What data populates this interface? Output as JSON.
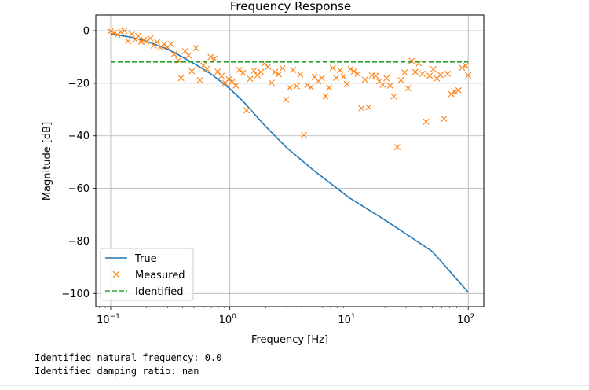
{
  "chart_data": {
    "type": "line",
    "title": "Frequency Response",
    "xlabel": "Frequency [Hz]",
    "ylabel": "Magnitude [dB]",
    "xscale": "log",
    "xlim": [
      0.075,
      135
    ],
    "ylim": [
      -105,
      6
    ],
    "grid": true,
    "legend_position": "lower-left",
    "x_ticks": [
      {
        "value": 0.1,
        "base": "10",
        "exp": "−1"
      },
      {
        "value": 1,
        "base": "10",
        "exp": "0"
      },
      {
        "value": 10,
        "base": "10",
        "exp": "1"
      },
      {
        "value": 100,
        "base": "10",
        "exp": "2"
      }
    ],
    "y_ticks": [
      {
        "value": 0,
        "label": "0"
      },
      {
        "value": -20,
        "label": "−20"
      },
      {
        "value": -40,
        "label": "−40"
      },
      {
        "value": -60,
        "label": "−60"
      },
      {
        "value": -80,
        "label": "−80"
      },
      {
        "value": -100,
        "label": "−100"
      }
    ],
    "series": [
      {
        "name": "True",
        "style": "line",
        "color": "#1f77b4",
        "x": [
          0.1,
          0.15,
          0.2,
          0.3,
          0.4,
          0.5,
          0.6,
          0.7,
          0.8,
          1.0,
          1.3,
          1.6,
          2.0,
          3.0,
          5.0,
          10,
          20,
          50,
          100
        ],
        "y": [
          -1.2,
          -2.5,
          -4.0,
          -7.0,
          -10.0,
          -12.5,
          -14.7,
          -16.6,
          -18.6,
          -22.1,
          -27.0,
          -31.6,
          -36.5,
          -44.5,
          -53.0,
          -63.5,
          -72.0,
          -84.0,
          -99.5
        ]
      },
      {
        "name": "Measured",
        "style": "marker-x",
        "color": "#ff7f0e",
        "x": [
          0.1,
          0.107,
          0.114,
          0.122,
          0.13,
          0.14,
          0.15,
          0.16,
          0.17,
          0.18,
          0.19,
          0.2,
          0.215,
          0.23,
          0.245,
          0.26,
          0.28,
          0.3,
          0.32,
          0.34,
          0.37,
          0.39,
          0.42,
          0.45,
          0.48,
          0.52,
          0.56,
          0.6,
          0.64,
          0.69,
          0.74,
          0.79,
          0.85,
          0.91,
          0.98,
          1.05,
          1.12,
          1.2,
          1.29,
          1.38,
          1.48,
          1.59,
          1.7,
          1.82,
          1.95,
          2.09,
          2.24,
          2.4,
          2.57,
          2.76,
          2.96,
          3.17,
          3.4,
          3.64,
          3.9,
          4.18,
          4.48,
          4.8,
          5.15,
          5.52,
          5.92,
          6.35,
          6.8,
          7.3,
          7.8,
          8.4,
          9.0,
          9.6,
          10.3,
          11.0,
          11.8,
          12.7,
          13.6,
          14.6,
          15.6,
          16.7,
          17.9,
          19.2,
          20.6,
          22.1,
          23.7,
          25.4,
          27.2,
          29.2,
          31.3,
          33.5,
          35.9,
          38.5,
          41.3,
          44.3,
          47.5,
          50.9,
          54.6,
          58.5,
          62.7,
          67.2,
          72.1,
          77.3,
          82.9,
          88.9,
          95.3,
          100
        ],
        "y": [
          -0.2,
          -0.8,
          -1.5,
          -0.4,
          -0.1,
          -4.0,
          -1.3,
          -3.3,
          -2.0,
          -4.2,
          -3.5,
          -4.1,
          -2.9,
          -5.6,
          -4.3,
          -6.4,
          -5.2,
          -6.3,
          -5.1,
          -8.9,
          -11.3,
          -18.0,
          -7.8,
          -9.4,
          -15.4,
          -6.6,
          -18.8,
          -13.2,
          -14.5,
          -10.0,
          -10.7,
          -15.6,
          -17.2,
          -19.9,
          -18.5,
          -19.4,
          -20.9,
          -14.9,
          -16.0,
          -30.3,
          -18.3,
          -15.2,
          -17.0,
          -15.7,
          -12.5,
          -13.7,
          -19.8,
          -15.7,
          -16.6,
          -14.3,
          -26.2,
          -21.7,
          -14.9,
          -21.1,
          -16.7,
          -39.7,
          -20.8,
          -21.6,
          -17.6,
          -19.2,
          -18.0,
          -24.9,
          -21.7,
          -14.2,
          -17.9,
          -15.1,
          -17.5,
          -20.3,
          -14.6,
          -15.5,
          -16.4,
          -29.5,
          -18.6,
          -29.1,
          -17.0,
          -17.2,
          -19.3,
          -20.6,
          -18.1,
          -20.9,
          -25.0,
          -44.3,
          -18.8,
          -15.9,
          -21.9,
          -11.5,
          -15.7,
          -12.4,
          -16.4,
          -34.6,
          -17.1,
          -14.6,
          -18.2,
          -16.8,
          -33.5,
          -16.4,
          -24.1,
          -23.3,
          -22.7,
          -14.1,
          -13.3,
          -17.0
        ]
      },
      {
        "name": "Identified",
        "style": "dashed-line",
        "color": "#2ca02c",
        "x": [
          0.1,
          100
        ],
        "y": [
          -11.9,
          -11.9
        ]
      }
    ]
  },
  "output_text": {
    "line1": "Identified natural frequency: 0.0",
    "line2": "Identified damping ratio: nan"
  }
}
